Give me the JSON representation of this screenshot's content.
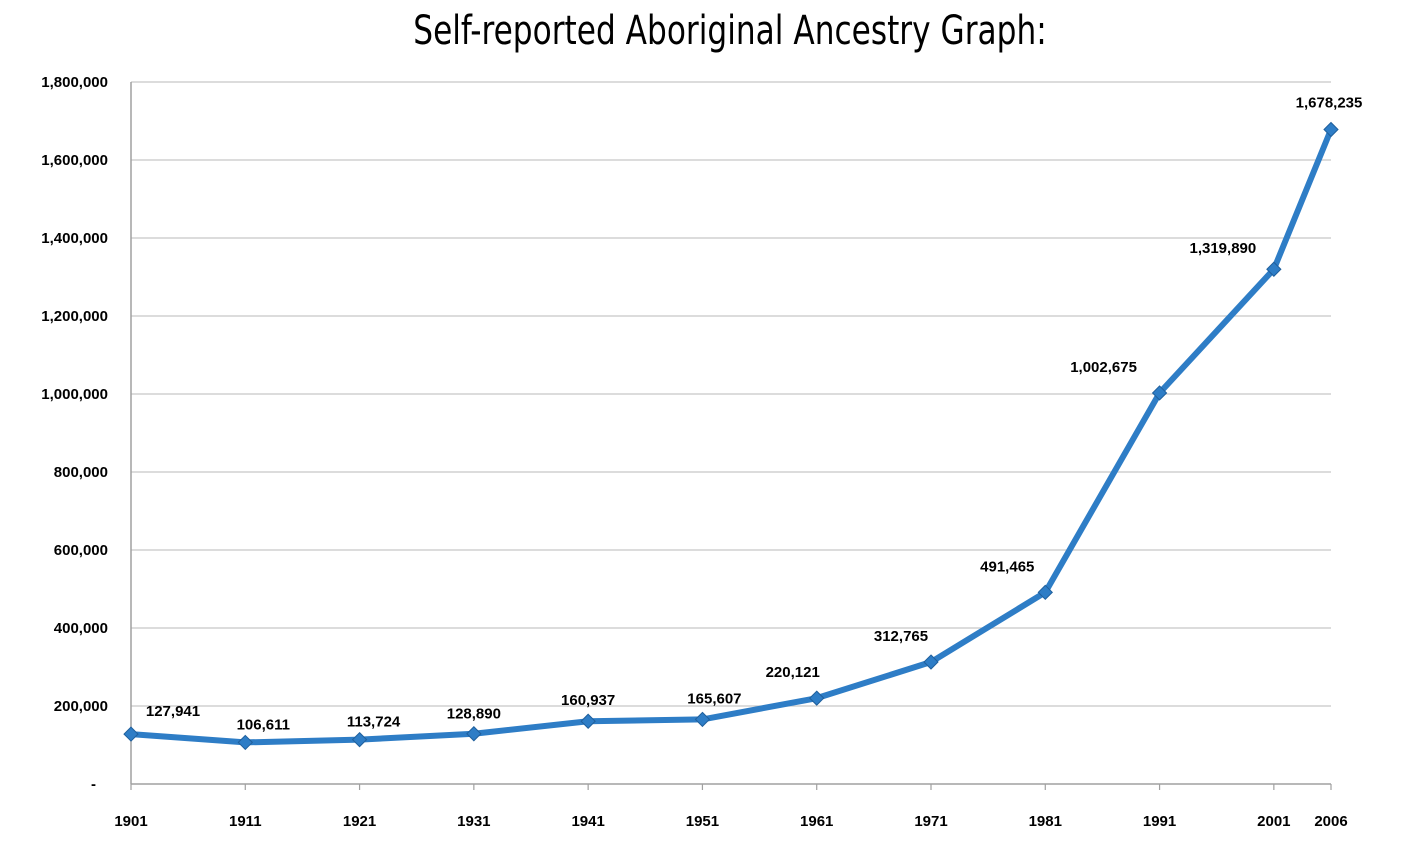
{
  "chart_data": {
    "type": "line",
    "title": "Self-reported Aboriginal Ancestry Graph:",
    "xlabel": "",
    "ylabel": "",
    "categories": [
      "1901",
      "1911",
      "1921",
      "1931",
      "1941",
      "1951",
      "1961",
      "1971",
      "1981",
      "1991",
      "2001",
      "2006"
    ],
    "series": [
      {
        "values": [
          127941,
          106611,
          113724,
          128890,
          160937,
          165607,
          220121,
          312765,
          491465,
          1002675,
          1319890,
          1678235
        ]
      }
    ],
    "data_labels": [
      "127,941",
      "106,611",
      "113,724",
      "128,890",
      "160,937",
      "165,607",
      "220,121",
      "312,765",
      "491,465",
      "1,002,675",
      "1,319,890",
      "1,678,235"
    ],
    "ylim": [
      0,
      1800000
    ],
    "yticks": [
      0,
      200000,
      400000,
      600000,
      800000,
      1000000,
      1200000,
      1400000,
      1600000,
      1800000
    ],
    "ytick_labels": [
      "-",
      "200,000",
      "400,000",
      "600,000",
      "800,000",
      "1,000,000",
      "1,200,000",
      "1,400,000",
      "1,600,000",
      "1,800,000"
    ],
    "grid": true,
    "legend": "none",
    "line_color": "#2e7dc6",
    "grid_color": "#c8c8c8"
  }
}
